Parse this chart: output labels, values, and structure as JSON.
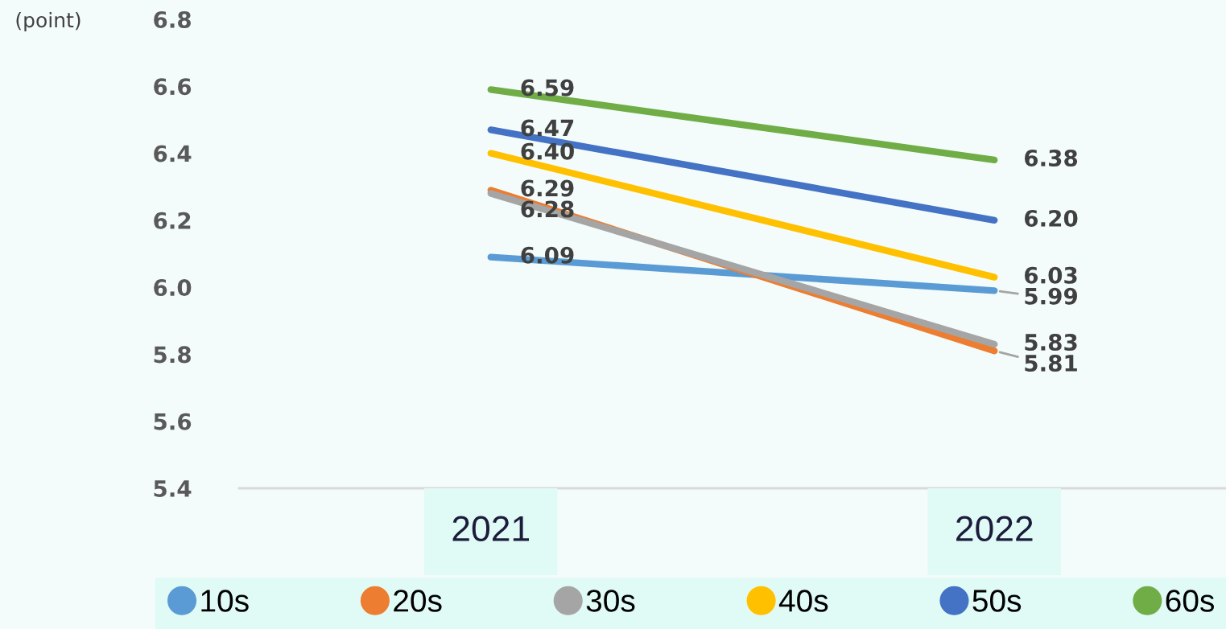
{
  "chart_data": {
    "type": "line",
    "ylabel": "(point)",
    "categories": [
      "2021",
      "2022"
    ],
    "ylim": [
      5.4,
      6.8
    ],
    "yticks": [
      5.4,
      5.6,
      5.8,
      {
        "value": 6,
        "label": "6.0"
      },
      6.2,
      6.4,
      6.6,
      6.8
    ],
    "grid": false,
    "legend": "bottom",
    "line_style": "solid",
    "series": [
      {
        "name": "10s",
        "color": "#5b9bd5",
        "values": [
          6.09,
          5.99
        ],
        "value_labels": [
          "6.09",
          "5.99"
        ]
      },
      {
        "name": "20s",
        "color": "#ed7d31",
        "values": [
          6.29,
          5.81
        ],
        "value_labels": [
          "6.29",
          "5.81"
        ]
      },
      {
        "name": "30s",
        "color": "#a5a5a5",
        "values": [
          6.28,
          5.83
        ],
        "value_labels": [
          "6.28",
          "5.83"
        ]
      },
      {
        "name": "40s",
        "color": "#ffc000",
        "values": [
          6.4,
          6.03
        ],
        "value_labels": [
          "6.40",
          "6.03"
        ]
      },
      {
        "name": "50s",
        "color": "#4472c4",
        "values": [
          6.47,
          6.2
        ],
        "value_labels": [
          "6.47",
          "6.20"
        ]
      },
      {
        "name": "60s",
        "color": "#70ad47",
        "values": [
          6.59,
          6.38
        ],
        "value_labels": [
          "6.59",
          "6.38"
        ]
      }
    ]
  }
}
